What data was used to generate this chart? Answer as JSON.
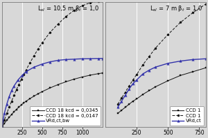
{
  "left_plot": {
    "title": "L$_{sl}$ = 10,5 m β$_t$ = 1,0",
    "xlim": [
      0,
      1250
    ],
    "xticks": [
      250,
      500,
      750,
      1000
    ],
    "ylim": [
      0,
      1.65
    ],
    "curve1": {
      "label": "CCD 18 kcd = 0,0345",
      "style": "solid",
      "color": "#111111",
      "marker": "s",
      "x": [
        0,
        30,
        60,
        90,
        120,
        150,
        180,
        210,
        240,
        270,
        300,
        350,
        400,
        450,
        500,
        600,
        700,
        800,
        900,
        1000,
        1100,
        1200,
        1250
      ],
      "y": [
        0.0,
        0.045,
        0.088,
        0.128,
        0.165,
        0.2,
        0.232,
        0.262,
        0.29,
        0.316,
        0.34,
        0.375,
        0.408,
        0.438,
        0.466,
        0.516,
        0.56,
        0.598,
        0.632,
        0.66,
        0.684,
        0.704,
        0.712
      ]
    },
    "curve2": {
      "label": "CCD 18 kcd = 0,0147",
      "style": "dashed",
      "color": "#111111",
      "marker": "o",
      "x": [
        0,
        30,
        60,
        90,
        120,
        150,
        180,
        210,
        240,
        270,
        300,
        350,
        400,
        450,
        500,
        600,
        700,
        800,
        900,
        1000,
        1100,
        1200,
        1250
      ],
      "y": [
        0.0,
        0.09,
        0.18,
        0.26,
        0.34,
        0.42,
        0.49,
        0.56,
        0.63,
        0.69,
        0.75,
        0.85,
        0.94,
        1.03,
        1.11,
        1.25,
        1.36,
        1.46,
        1.54,
        1.6,
        1.64,
        1.66,
        1.67
      ]
    },
    "curve3": {
      "label": "VRd,ct,bw",
      "style": "solid",
      "color": "#3333aa",
      "marker": "^",
      "x": [
        0,
        30,
        60,
        90,
        120,
        150,
        200,
        250,
        300,
        400,
        500,
        600,
        700,
        800,
        900,
        1000,
        1100,
        1200,
        1250
      ],
      "y": [
        0.0,
        0.18,
        0.3,
        0.4,
        0.48,
        0.54,
        0.62,
        0.68,
        0.73,
        0.79,
        0.83,
        0.86,
        0.88,
        0.89,
        0.895,
        0.9,
        0.902,
        0.904,
        0.905
      ]
    }
  },
  "right_plot": {
    "title": "L$_{sl}$ = 7 m β$_t$ = 1,0",
    "xlim": [
      0,
      800
    ],
    "xticks": [
      250,
      500,
      750
    ],
    "ylim": [
      0,
      1.65
    ],
    "curve1": {
      "label": "CCD 1",
      "style": "solid",
      "color": "#111111",
      "marker": "s",
      "x": [
        100,
        130,
        160,
        190,
        220,
        250,
        300,
        350,
        400,
        500,
        600,
        700,
        800
      ],
      "y": [
        0.18,
        0.22,
        0.26,
        0.3,
        0.34,
        0.37,
        0.43,
        0.48,
        0.53,
        0.61,
        0.68,
        0.73,
        0.78
      ]
    },
    "curve2": {
      "label": "CCD 1",
      "style": "dashed",
      "color": "#111111",
      "marker": "o",
      "x": [
        100,
        130,
        160,
        190,
        220,
        250,
        300,
        350,
        400,
        500,
        600,
        700,
        800
      ],
      "y": [
        0.3,
        0.38,
        0.46,
        0.54,
        0.62,
        0.69,
        0.82,
        0.93,
        1.04,
        1.22,
        1.38,
        1.51,
        1.62
      ]
    },
    "curve3": {
      "label": "VRd,ct",
      "style": "solid",
      "color": "#3333aa",
      "marker": "^",
      "x": [
        100,
        130,
        160,
        190,
        220,
        250,
        300,
        350,
        400,
        500,
        600,
        700,
        800
      ],
      "y": [
        0.26,
        0.34,
        0.42,
        0.5,
        0.57,
        0.62,
        0.7,
        0.75,
        0.79,
        0.84,
        0.87,
        0.89,
        0.9
      ]
    }
  },
  "bg_color": "#d8d8d8",
  "plot_bg_color": "#d8d8d8",
  "grid_color": "#ffffff",
  "legend_fontsize": 5.0,
  "title_fontsize": 6.0,
  "tick_fontsize": 5.5
}
